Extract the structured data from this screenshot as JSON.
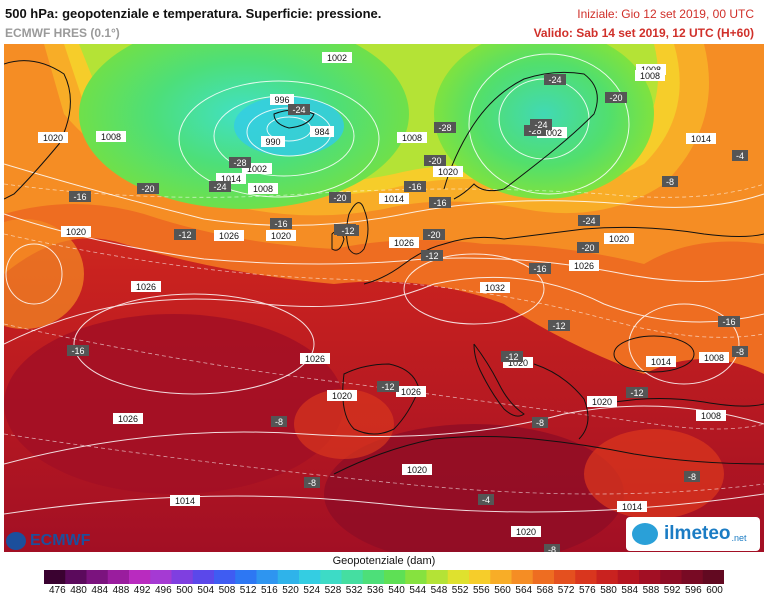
{
  "header": {
    "title": "500 hPa: geopotenziale e temperatura. Superficie: pressione.",
    "model": "ECMWF HRES (0.1°)",
    "init": "Iniziale: Gio 12 set 2019, 00 UTC",
    "valid": "Valido: Sab 14 set 2019, 12 UTC (H+60)"
  },
  "map": {
    "pressure_labels": [
      "1002",
      "1008",
      "996",
      "984",
      "990",
      "1002",
      "1008",
      "1014",
      "1008",
      "1020",
      "1026",
      "1020",
      "1014",
      "1008",
      "1002",
      "1020",
      "1026",
      "1020",
      "1026",
      "1014",
      "1008",
      "1032",
      "1026",
      "1020",
      "1026",
      "1020",
      "1026",
      "1020",
      "1020",
      "1014",
      "1020",
      "1026",
      "1014",
      "1008",
      "1020",
      "1008",
      "1014"
    ],
    "temp_labels": [
      "-24",
      "-24",
      "-28",
      "-24",
      "-20",
      "-16",
      "-20",
      "-12",
      "-16",
      "-12",
      "-16",
      "-20",
      "-24",
      "-20",
      "-28",
      "-24",
      "-28",
      "-20",
      "-16",
      "-12",
      "-16",
      "-12",
      "-24",
      "-20",
      "-16",
      "-12",
      "-16",
      "-8",
      "-12",
      "-12",
      "-8",
      "-8",
      "-8",
      "-12",
      "-4",
      "-8",
      "-4",
      "-8",
      "-8"
    ]
  },
  "branding": {
    "ecmwf_logo": "ECMWF",
    "ilmeteo_logo": "ilmeteo",
    "ilmeteo_suffix": ".net"
  },
  "colorbar": {
    "label": "Geopotenziale (dam)",
    "ticks": [
      "476",
      "480",
      "484",
      "488",
      "492",
      "496",
      "500",
      "504",
      "508",
      "512",
      "516",
      "520",
      "524",
      "528",
      "532",
      "536",
      "540",
      "544",
      "548",
      "552",
      "556",
      "560",
      "564",
      "568",
      "572",
      "576",
      "580",
      "584",
      "588",
      "592",
      "596",
      "600"
    ],
    "colors": [
      "#3a0230",
      "#5b0a5c",
      "#7b137e",
      "#9a1d9e",
      "#b92bbf",
      "#a53ad3",
      "#7f3fe0",
      "#5b48ea",
      "#3f5cf2",
      "#2d77f3",
      "#2e95f0",
      "#2fb3ea",
      "#34cde2",
      "#3ddbc6",
      "#45dea1",
      "#4ddf79",
      "#5ee055",
      "#86e23f",
      "#b4e336",
      "#dfe12e",
      "#f6cd2a",
      "#f8ad27",
      "#f58d24",
      "#ee6d21",
      "#e4501f",
      "#d9361e",
      "#c9221f",
      "#b61521",
      "#a20f24",
      "#8e0c25",
      "#780a24",
      "#620921"
    ]
  }
}
